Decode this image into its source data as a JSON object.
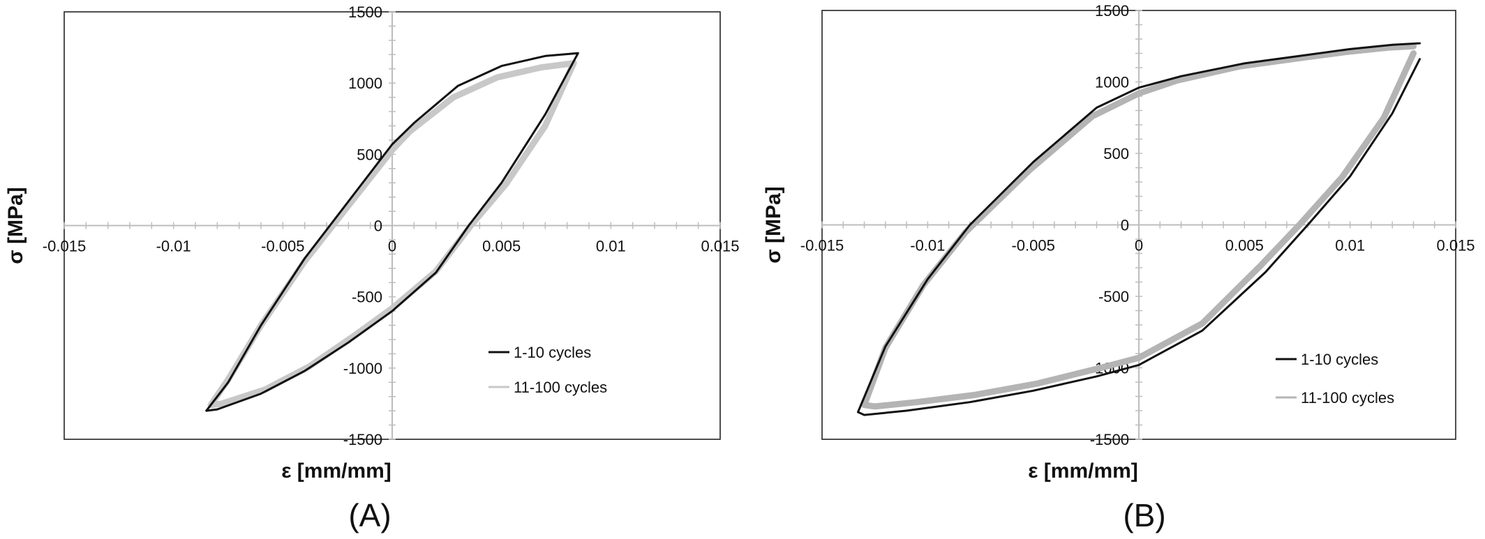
{
  "chart_data": [
    {
      "type": "line",
      "panel_label": "(A)",
      "title": "",
      "xlabel": "ε [mm/mm]",
      "ylabel": "σ [MPa]",
      "xlim": [
        -0.015,
        0.015
      ],
      "ylim": [
        -1500,
        1500
      ],
      "xticks": [
        -0.015,
        -0.01,
        -0.005,
        0,
        0.005,
        0.01,
        0.015
      ],
      "xtick_labels": [
        "-0.015",
        "-0.01",
        "-0.005",
        "0",
        "0.005",
        "0.01",
        "0.015"
      ],
      "yticks": [
        -1500,
        -1000,
        -500,
        0,
        500,
        1000,
        1500
      ],
      "ytick_labels": [
        "-1500",
        "-1000",
        "-500",
        "0",
        "500",
        "1000",
        "1500"
      ],
      "grid": false,
      "legend_position": "bottom-right",
      "series": [
        {
          "name": "1-10 cycles",
          "color": "#111111",
          "x": [
            0.0085,
            0.007,
            0.005,
            0.003,
            0.001,
            0.0,
            -0.002,
            -0.004,
            -0.006,
            -0.0075,
            -0.0085,
            -0.008,
            -0.006,
            -0.004,
            -0.002,
            0.0,
            0.002,
            0.0035,
            0.005,
            0.007,
            0.0085
          ],
          "y": [
            1210,
            1190,
            1120,
            980,
            720,
            570,
            170,
            -230,
            -700,
            -1100,
            -1300,
            -1290,
            -1180,
            -1020,
            -820,
            -600,
            -330,
            0,
            300,
            780,
            1210
          ]
        },
        {
          "name": "11-100 cycles",
          "color": "#c8c8c8",
          "x": [
            0.0083,
            0.0068,
            0.0048,
            0.0028,
            0.0008,
            0.0,
            -0.002,
            -0.004,
            -0.006,
            -0.0075,
            -0.0083,
            -0.0078,
            -0.0058,
            -0.0038,
            -0.0018,
            0.0,
            0.002,
            0.0036,
            0.0052,
            0.007,
            0.0083
          ],
          "y": [
            1140,
            1110,
            1040,
            900,
            660,
            530,
            140,
            -250,
            -700,
            -1080,
            -1260,
            -1250,
            -1150,
            -990,
            -780,
            -580,
            -320,
            0,
            290,
            700,
            1140
          ]
        }
      ]
    },
    {
      "type": "line",
      "panel_label": "(B)",
      "title": "",
      "xlabel": "ε [mm/mm]",
      "ylabel": "σ [MPa]",
      "xlim": [
        -0.015,
        0.015
      ],
      "ylim": [
        -1500,
        1500
      ],
      "xticks": [
        -0.015,
        -0.01,
        -0.005,
        0,
        0.005,
        0.01,
        0.015
      ],
      "xtick_labels": [
        "-0.015",
        "-0.01",
        "-0.005",
        "0",
        "0.005",
        "0.01",
        "0.015"
      ],
      "yticks": [
        -1500,
        -1000,
        -500,
        0,
        500,
        1000,
        1500
      ],
      "ytick_labels": [
        "-1500",
        "-1000",
        "-500",
        "0",
        "500",
        "1000",
        "1500"
      ],
      "grid": false,
      "legend_position": "bottom-right",
      "series": [
        {
          "name": "1-10 cycles",
          "color": "#111111",
          "x": [
            0.0133,
            0.012,
            0.01,
            0.008,
            0.005,
            0.002,
            0.0,
            -0.002,
            -0.005,
            -0.008,
            -0.01,
            -0.012,
            -0.0133,
            -0.013,
            -0.011,
            -0.008,
            -0.005,
            -0.002,
            0.0,
            0.003,
            0.006,
            0.008,
            0.01,
            0.012,
            0.0133
          ],
          "y": [
            1270,
            1260,
            1230,
            1190,
            1130,
            1040,
            960,
            820,
            440,
            0,
            -380,
            -850,
            -1310,
            -1330,
            -1300,
            -1240,
            -1160,
            -1060,
            -980,
            -740,
            -330,
            0,
            340,
            780,
            1160
          ]
        },
        {
          "name": "11-100 cycles",
          "color": "#b4b4b4",
          "x": [
            0.013,
            0.0118,
            0.0098,
            0.0078,
            0.0048,
            0.0018,
            0.0,
            -0.0022,
            -0.0052,
            -0.0082,
            -0.0102,
            -0.012,
            -0.013,
            -0.0125,
            -0.0105,
            -0.0078,
            -0.0048,
            -0.0018,
            0.0,
            0.003,
            0.0058,
            0.0076,
            0.0096,
            0.0116,
            0.013
          ],
          "y": [
            1250,
            1240,
            1210,
            1170,
            1110,
            1010,
            920,
            760,
            380,
            -50,
            -420,
            -860,
            -1260,
            -1270,
            -1240,
            -1190,
            -1110,
            -1000,
            -930,
            -690,
            -280,
            0,
            330,
            750,
            1200
          ]
        }
      ]
    }
  ]
}
